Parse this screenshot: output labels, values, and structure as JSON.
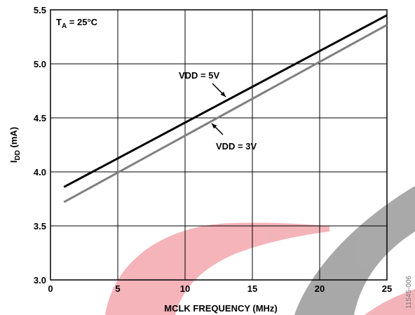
{
  "chart_data": {
    "type": "line",
    "title": "",
    "xlabel": "MCLK FREQUENCY (MHz)",
    "ylabel_main": "I",
    "ylabel_sub": "DD",
    "ylabel_unit": " (mA)",
    "xlim": [
      0,
      25
    ],
    "ylim": [
      3.0,
      5.5
    ],
    "x_ticks": [
      "0",
      "5",
      "10",
      "15",
      "20",
      "25"
    ],
    "y_ticks": [
      "3.0",
      "3.5",
      "4.0",
      "4.5",
      "5.0",
      "5.5"
    ],
    "grid": true,
    "condition": {
      "main": "T",
      "sub": "A",
      "rest": " = 25°C"
    },
    "series": [
      {
        "name": "VDD = 5V",
        "color": "#000000",
        "x": [
          1,
          25
        ],
        "y": [
          3.86,
          5.45
        ]
      },
      {
        "name": "VDD = 3V",
        "color": "#808080",
        "x": [
          1,
          25
        ],
        "y": [
          3.72,
          5.36
        ]
      }
    ],
    "figure_id": "11545-006"
  }
}
